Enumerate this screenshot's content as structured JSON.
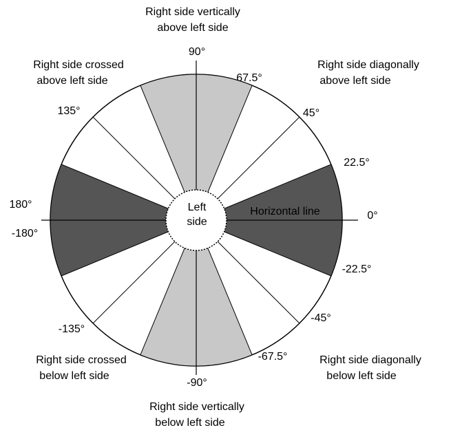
{
  "center_label": [
    "Left",
    "side"
  ],
  "axis_label": "Horizontal line",
  "angles": [
    "90°",
    "67.5°",
    "45°",
    "22.5°",
    "0°",
    "-22.5°",
    "-45°",
    "-67.5°",
    "-90°",
    "-135°",
    "-180°",
    "180°",
    "135°"
  ],
  "regions": [
    [
      "Right side vertically",
      "above left side"
    ],
    [
      "Right side diagonally",
      "above left side"
    ],
    [
      "Right side crossed",
      "above left side"
    ],
    [
      "Right side crossed",
      "below left side"
    ],
    [
      "Right side diagonally",
      "below left side"
    ],
    [
      "Right side vertically",
      "below left side"
    ]
  ]
}
